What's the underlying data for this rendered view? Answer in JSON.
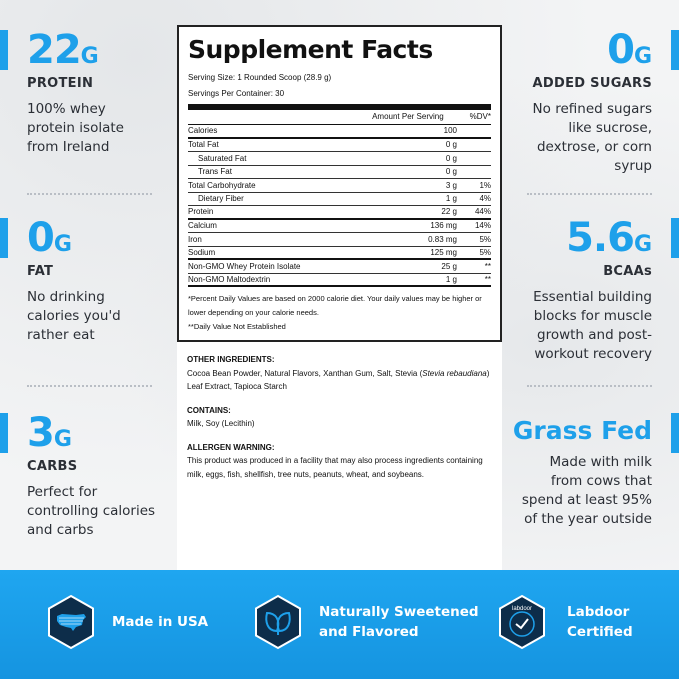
{
  "left_stats": [
    {
      "num": "22",
      "unit": "G",
      "label": "PROTEIN",
      "desc": [
        "100% whey",
        "protein isolate",
        "from Ireland"
      ]
    },
    {
      "num": "0",
      "unit": "G",
      "label": "FAT",
      "desc": [
        "No drinking",
        "calories you'd",
        "rather eat"
      ]
    },
    {
      "num": "3",
      "unit": "G",
      "label": "CARBS",
      "desc": [
        "Perfect for",
        "controlling calories",
        "and carbs"
      ]
    }
  ],
  "right_stats": [
    {
      "num": "0",
      "unit": "G",
      "label": "ADDED SUGARS",
      "desc": [
        "No refined sugars",
        "like sucrose,",
        "dextrose, or corn",
        "syrup"
      ]
    },
    {
      "num": "5.6",
      "unit": "G",
      "label": "BCAAs",
      "desc": [
        "Essential building",
        "blocks for muscle",
        "growth and post-",
        "workout recovery"
      ]
    },
    {
      "num": "Grass Fed",
      "unit": "",
      "label": "",
      "desc": [
        "Made with milk",
        "from cows that",
        "spend at least 95%",
        "of the year outside"
      ]
    }
  ],
  "facts": {
    "title": "Supplement Facts",
    "serving_size": "Serving Size: 1 Rounded Scoop (28.9 g)",
    "servings_per_container": "Servings Per Container: 30",
    "col_amount": "Amount Per Serving",
    "col_dv": "%DV*",
    "rows": [
      {
        "name": "Calories",
        "amount": "100",
        "dv": "",
        "indent": false,
        "heavy": true
      },
      {
        "name": "Total Fat",
        "amount": "0 g",
        "dv": "",
        "indent": false,
        "heavy": false
      },
      {
        "name": "Saturated Fat",
        "amount": "0 g",
        "dv": "",
        "indent": true,
        "heavy": false
      },
      {
        "name": "Trans Fat",
        "amount": "0 g",
        "dv": "",
        "indent": true,
        "heavy": false
      },
      {
        "name": "Total Carbohydrate",
        "amount": "3 g",
        "dv": "1%",
        "indent": false,
        "heavy": false
      },
      {
        "name": "Dietary Fiber",
        "amount": "1 g",
        "dv": "4%",
        "indent": true,
        "heavy": false
      },
      {
        "name": "Protein",
        "amount": "22 g",
        "dv": "44%",
        "indent": false,
        "heavy": true
      },
      {
        "name": "Calcium",
        "amount": "136 mg",
        "dv": "14%",
        "indent": false,
        "heavy": false
      },
      {
        "name": "Iron",
        "amount": "0.83 mg",
        "dv": "5%",
        "indent": false,
        "heavy": false
      },
      {
        "name": "Sodium",
        "amount": "125 mg",
        "dv": "5%",
        "indent": false,
        "heavy": true
      },
      {
        "name": "Non-GMO Whey Protein Isolate",
        "amount": "25 g",
        "dv": "**",
        "indent": false,
        "heavy": false
      },
      {
        "name": "Non-GMO Maltodextrin",
        "amount": "1 g",
        "dv": "**",
        "indent": false,
        "heavy": true
      }
    ],
    "note1": "*Percent Daily Values are based on 2000 calorie diet. Your daily values may be higher or lower depending on your calorie needs.",
    "note2": "**Daily Value Not Established"
  },
  "ingredients": {
    "other_heading": "OTHER INGREDIENTS:",
    "other_text_a": "Cocoa Bean Powder, Natural Flavors, Xanthan Gum, Salt, Stevia (",
    "other_text_italic": "Stevia rebaudiana",
    "other_text_b": ") Leaf Extract, Tapioca Starch",
    "contains_heading": "CONTAINS:",
    "contains_text": "Milk, Soy (Lecithin)",
    "allergen_heading": "ALLERGEN WARNING:",
    "allergen_text": "This product was produced in a facility that may also process ingredients containing milk, eggs, fish, shellfish, tree nuts, peanuts, wheat, and soybeans."
  },
  "badges": [
    {
      "icon": "usa-map-icon",
      "lines": [
        "Made in USA"
      ]
    },
    {
      "icon": "leaf-icon",
      "lines": [
        "Naturally Sweetened",
        "and Flavored"
      ]
    },
    {
      "icon": "labdoor-seal-icon",
      "lines": [
        "Labdoor",
        "Certified"
      ],
      "seal_text": "labdoor"
    }
  ],
  "colors": {
    "accent": "#1ea0ea",
    "band": "#1a9de8",
    "hex_fill": "#0d2d4a"
  }
}
